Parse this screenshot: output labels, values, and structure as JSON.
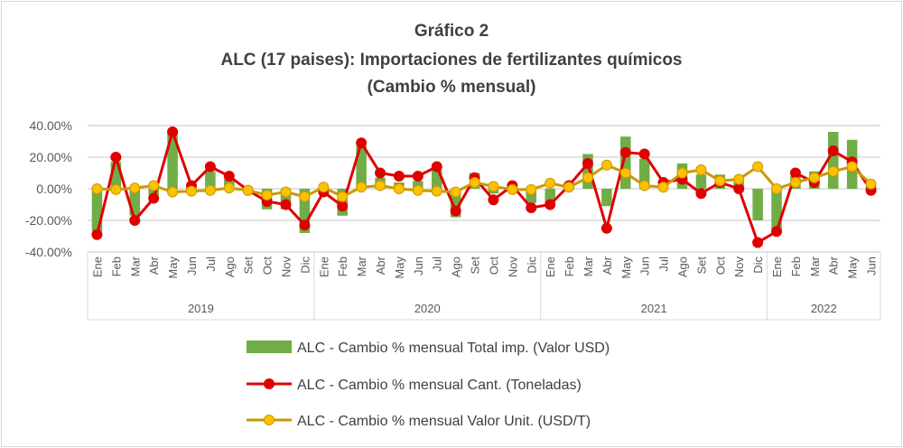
{
  "chart_data": {
    "type": "bar+line",
    "title": [
      "Gráfico 2",
      "ALC (17 paises): Importaciones de fertilizantes químicos",
      "(Cambio % mensual)"
    ],
    "years": [
      {
        "label": "2019",
        "months": [
          "Ene",
          "Feb",
          "Mar",
          "Abr",
          "May",
          "Jun",
          "Jul",
          "Ago",
          "Set",
          "Oct",
          "Nov",
          "Dic"
        ]
      },
      {
        "label": "2020",
        "months": [
          "Ene",
          "Feb",
          "Mar",
          "Abr",
          "May",
          "Jun",
          "Jul",
          "Ago",
          "Set",
          "Oct",
          "Nov",
          "Dic"
        ]
      },
      {
        "label": "2021",
        "months": [
          "Ene",
          "Feb",
          "Mar",
          "Abr",
          "May",
          "Jun",
          "Jul",
          "Ago",
          "Set",
          "Oct",
          "Nov",
          "Dic"
        ]
      },
      {
        "label": "2022",
        "months": [
          "Ene",
          "Feb",
          "Mar",
          "Abr",
          "May",
          "Jun"
        ]
      }
    ],
    "yticks": [
      "40.00%",
      "20.00%",
      "0.00%",
      "-20.00%",
      "-40.00%"
    ],
    "ylim": [
      -40,
      40
    ],
    "grid": true,
    "legend_placement": "bottom",
    "series": [
      {
        "name": "ALC - Cambio % mensual Total imp. (Valor USD)",
        "type": "bar",
        "color": "#70ad47",
        "values": [
          -27,
          17,
          -17,
          -4,
          36,
          2,
          11,
          6,
          -1,
          -13,
          -13,
          -28,
          -3,
          -17,
          27,
          7,
          4,
          5,
          12,
          -18,
          10,
          -3,
          1,
          -9,
          -9,
          0,
          22,
          -11,
          33,
          19,
          2,
          16,
          9,
          9,
          5,
          -20,
          -28,
          8,
          11,
          36,
          31,
          2
        ]
      },
      {
        "name": "ALC - Cambio % mensual Cant. (Toneladas)",
        "type": "line",
        "color": "#e00000",
        "values": [
          -29,
          20,
          -20,
          -6,
          36,
          2,
          14,
          8,
          -1,
          -8,
          -10,
          -23,
          -2,
          -11,
          29,
          10,
          8,
          8,
          14,
          -14,
          7,
          -7,
          2,
          -12,
          -10,
          2,
          16,
          -25,
          23,
          22,
          4,
          6,
          -3,
          4,
          0,
          -34,
          -27,
          10,
          4,
          24,
          17,
          -1
        ]
      },
      {
        "name": "ALC - Cambio % mensual Valor Unit. (USD/T)",
        "type": "line",
        "color": "#c99a00",
        "marker_color": "#ffc000",
        "values": [
          0,
          -0.5,
          0.5,
          2,
          -2,
          -1.5,
          -1,
          0.5,
          -1,
          -4,
          -2,
          -5,
          1,
          -5,
          1,
          2,
          0,
          -1,
          -1.5,
          -2,
          4,
          1.5,
          -0.5,
          -0.5,
          3.5,
          1,
          7,
          15,
          10,
          2,
          1,
          10,
          12,
          5,
          6,
          14,
          0,
          4,
          7,
          11,
          14,
          3
        ]
      }
    ]
  }
}
